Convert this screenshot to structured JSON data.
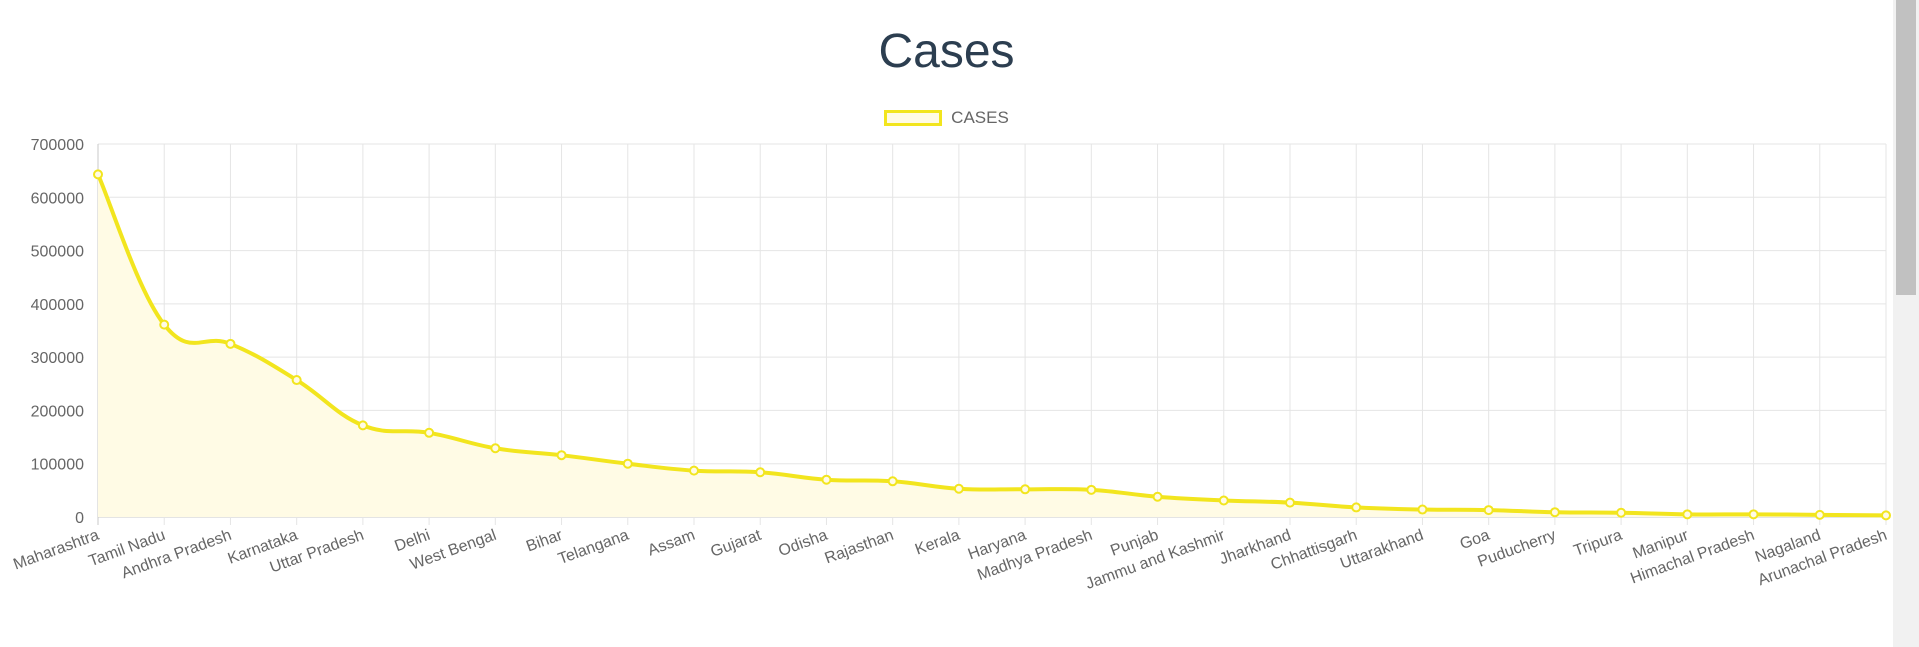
{
  "colors": {
    "line": "#f2e51e",
    "fill": "#fffbe5",
    "grid": "#e5e5e5",
    "title": "#2c3e50",
    "text": "#666666"
  },
  "chart_data": {
    "type": "line",
    "title": "Cases",
    "legend_position": "top",
    "grid": true,
    "ylim": [
      0,
      700000
    ],
    "y_ticks": [
      0,
      100000,
      200000,
      300000,
      400000,
      500000,
      600000,
      700000
    ],
    "categories": [
      "Maharashtra",
      "Tamil Nadu",
      "Andhra Pradesh",
      "Karnataka",
      "Uttar Pradesh",
      "Delhi",
      "West Bengal",
      "Bihar",
      "Telangana",
      "Assam",
      "Gujarat",
      "Odisha",
      "Rajasthan",
      "Kerala",
      "Haryana",
      "Madhya Pradesh",
      "Punjab",
      "Jammu and Kashmir",
      "Jharkhand",
      "Chhattisgarh",
      "Uttarakhand",
      "Goa",
      "Puducherry",
      "Tripura",
      "Manipur",
      "Himachal Pradesh",
      "Nagaland",
      "Arunachal Pradesh"
    ],
    "series": [
      {
        "name": "CASES",
        "values": [
          643000,
          361000,
          325000,
          257000,
          172000,
          158000,
          129000,
          116000,
          100000,
          87000,
          84000,
          70000,
          67000,
          53000,
          52000,
          51000,
          38000,
          31000,
          27000,
          18000,
          14000,
          13000,
          9000,
          8000,
          5000,
          5000,
          4000,
          3000
        ]
      }
    ]
  }
}
